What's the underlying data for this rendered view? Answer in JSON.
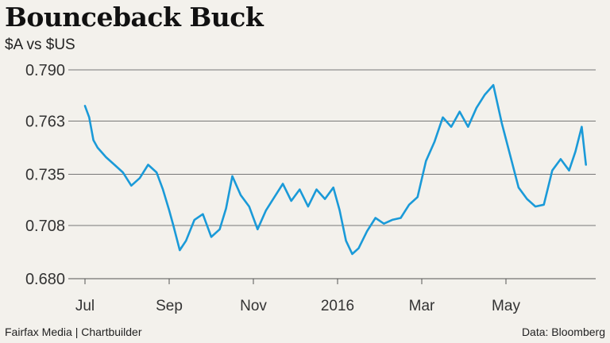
{
  "chart_data": {
    "type": "line",
    "title": "Bounceback Buck",
    "subtitle": "$A vs $US",
    "yticks": [
      "0.790",
      "0.763",
      "0.735",
      "0.708",
      "0.680"
    ],
    "ytick_values": [
      0.79,
      0.763,
      0.735,
      0.708,
      0.68
    ],
    "ylim": [
      0.68,
      0.79
    ],
    "xticks": [
      "Jul",
      "Sep",
      "Nov",
      "2016",
      "Mar",
      "May"
    ],
    "xtick_positions": [
      0,
      2,
      4,
      6,
      8,
      10
    ],
    "xlim": [
      0,
      12
    ],
    "grid": "horizontal",
    "series": [
      {
        "color": "#1a9ad8",
        "x": [
          0,
          0.1,
          0.2,
          0.3,
          0.5,
          0.7,
          0.9,
          1.1,
          1.3,
          1.5,
          1.7,
          1.85,
          2.0,
          2.1,
          2.25,
          2.4,
          2.6,
          2.8,
          3.0,
          3.2,
          3.35,
          3.5,
          3.7,
          3.9,
          4.1,
          4.3,
          4.5,
          4.7,
          4.9,
          5.1,
          5.3,
          5.5,
          5.7,
          5.9,
          6.05,
          6.2,
          6.35,
          6.5,
          6.7,
          6.9,
          7.1,
          7.3,
          7.5,
          7.7,
          7.9,
          8.1,
          8.3,
          8.5,
          8.7,
          8.9,
          9.1,
          9.3,
          9.5,
          9.7,
          9.9,
          10.1,
          10.3,
          10.5,
          10.7,
          10.9,
          11.1,
          11.3,
          11.5,
          11.65,
          11.8,
          11.9
        ],
        "values": [
          0.771,
          0.765,
          0.753,
          0.749,
          0.744,
          0.74,
          0.736,
          0.729,
          0.733,
          0.74,
          0.736,
          0.727,
          0.716,
          0.708,
          0.695,
          0.7,
          0.711,
          0.714,
          0.702,
          0.706,
          0.717,
          0.734,
          0.724,
          0.718,
          0.706,
          0.716,
          0.723,
          0.73,
          0.721,
          0.727,
          0.718,
          0.727,
          0.722,
          0.728,
          0.716,
          0.7,
          0.693,
          0.696,
          0.705,
          0.712,
          0.709,
          0.711,
          0.712,
          0.719,
          0.723,
          0.742,
          0.752,
          0.765,
          0.76,
          0.768,
          0.76,
          0.77,
          0.777,
          0.782,
          0.762,
          0.745,
          0.728,
          0.722,
          0.718,
          0.719,
          0.737,
          0.743,
          0.737,
          0.747,
          0.76,
          0.74
        ]
      }
    ]
  },
  "source_left": "Fairfax Media | Chartbuilder",
  "source_right": "Data: Bloomberg"
}
